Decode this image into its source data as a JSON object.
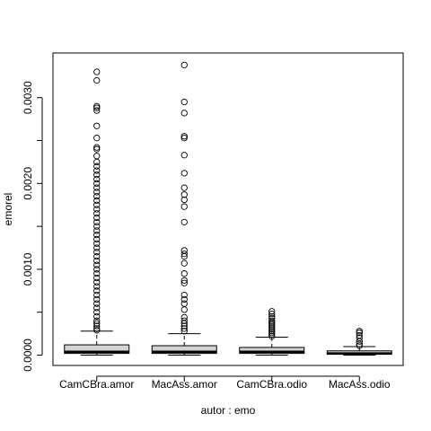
{
  "chart_data": {
    "type": "boxplot",
    "title": "",
    "xlabel": "autor : emo",
    "ylabel": "emorel",
    "ylim": [
      -0.00012,
      0.00352
    ],
    "y_ticks": [
      0.0,
      0.001,
      0.002,
      0.003
    ],
    "y_tick_labels": [
      "0.0000",
      "0.0010",
      "0.0020",
      "0.0030"
    ],
    "y_minor_ticks": [
      0.0005,
      0.0015,
      0.0025
    ],
    "box_fill": "#d3d3d3",
    "categories": [
      "CamCBra.amor",
      "MacAss.amor",
      "CamCBra.odio",
      "MacAss.odio"
    ],
    "boxes": [
      {
        "name": "CamCBra.amor",
        "whisker_low": 0.0,
        "q1": 2e-05,
        "median": 4e-05,
        "q3": 0.00012,
        "whisker_high": 0.00028,
        "outliers": [
          0.0033,
          0.0032,
          0.0029,
          0.00288,
          0.00285,
          0.00267,
          0.00253,
          0.00242,
          0.0024,
          0.00232,
          0.00225,
          0.0022,
          0.00215,
          0.0021,
          0.00205,
          0.002,
          0.00195,
          0.0019,
          0.00185,
          0.0018,
          0.00175,
          0.0017,
          0.00165,
          0.0016,
          0.00155,
          0.0015,
          0.00145,
          0.0014,
          0.00135,
          0.0013,
          0.00125,
          0.0012,
          0.00115,
          0.0011,
          0.00105,
          0.001,
          0.00095,
          0.0009,
          0.00085,
          0.0008,
          0.00075,
          0.0007,
          0.00065,
          0.0006,
          0.00055,
          0.0005,
          0.00045,
          0.0004,
          0.00037,
          0.00034,
          0.00031,
          0.00029
        ]
      },
      {
        "name": "MacAss.amor",
        "whisker_low": 0.0,
        "q1": 2e-05,
        "median": 4e-05,
        "q3": 0.00011,
        "whisker_high": 0.00025,
        "outliers": [
          0.00338,
          0.00295,
          0.00282,
          0.00255,
          0.00253,
          0.00233,
          0.00212,
          0.00195,
          0.00187,
          0.00181,
          0.00173,
          0.00155,
          0.00122,
          0.00118,
          0.00115,
          0.00107,
          0.00095,
          0.00087,
          0.00084,
          0.0007,
          0.00065,
          0.0006,
          0.00053,
          0.00044,
          0.0004,
          0.00037,
          0.00034,
          0.00031,
          0.00028
        ]
      },
      {
        "name": "CamCBra.odio",
        "whisker_low": 0.0,
        "q1": 2e-05,
        "median": 4e-05,
        "q3": 9e-05,
        "whisker_high": 0.00021,
        "outliers": [
          0.00051,
          0.00048,
          0.00045,
          0.00043,
          0.0004,
          0.00038,
          0.00036,
          0.00034,
          0.00032,
          0.0003,
          0.00028,
          0.00026,
          0.00024,
          0.00022
        ]
      },
      {
        "name": "MacAss.odio",
        "whisker_low": 0.0,
        "q1": 1e-05,
        "median": 2e-05,
        "q3": 5e-05,
        "whisker_high": 0.0001,
        "outliers": [
          0.00028,
          0.00026,
          0.00023,
          0.0002,
          0.00016,
          0.00013,
          0.00011
        ]
      }
    ]
  }
}
